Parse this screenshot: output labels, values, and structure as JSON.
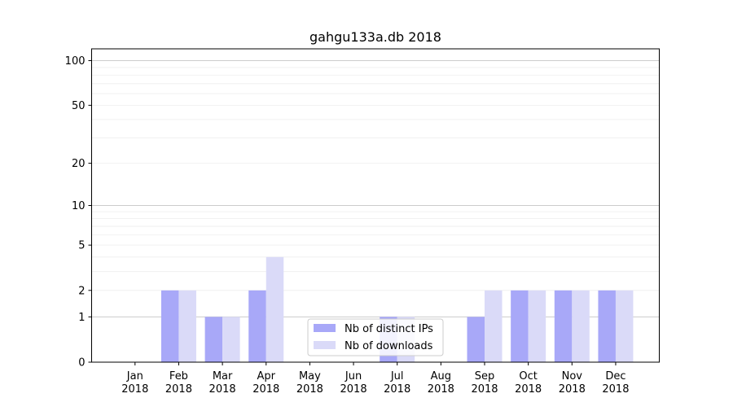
{
  "chart_data": {
    "type": "bar",
    "title": "gahgu133a.db 2018",
    "xlabel": "",
    "ylabel": "",
    "y_scale": "log1p",
    "ylim": [
      0,
      120
    ],
    "y_ticks": [
      "0",
      "1",
      "2",
      "5",
      "10",
      "20",
      "50",
      "100"
    ],
    "grid": true,
    "legend_position": "lower-center",
    "categories": [
      [
        "Jan",
        "2018"
      ],
      [
        "Feb",
        "2018"
      ],
      [
        "Mar",
        "2018"
      ],
      [
        "Apr",
        "2018"
      ],
      [
        "May",
        "2018"
      ],
      [
        "Jun",
        "2018"
      ],
      [
        "Jul",
        "2018"
      ],
      [
        "Aug",
        "2018"
      ],
      [
        "Sep",
        "2018"
      ],
      [
        "Oct",
        "2018"
      ],
      [
        "Nov",
        "2018"
      ],
      [
        "Dec",
        "2018"
      ]
    ],
    "series": [
      {
        "name": "Nb of distinct IPs",
        "color": "#a8a8f8",
        "values": [
          0,
          2,
          1,
          2,
          0,
          0,
          1,
          0,
          1,
          2,
          2,
          2
        ]
      },
      {
        "name": "Nb of downloads",
        "color": "#dadaf8",
        "values": [
          0,
          2,
          1,
          4,
          0,
          0,
          1,
          0,
          2,
          2,
          2,
          2
        ]
      }
    ]
  }
}
